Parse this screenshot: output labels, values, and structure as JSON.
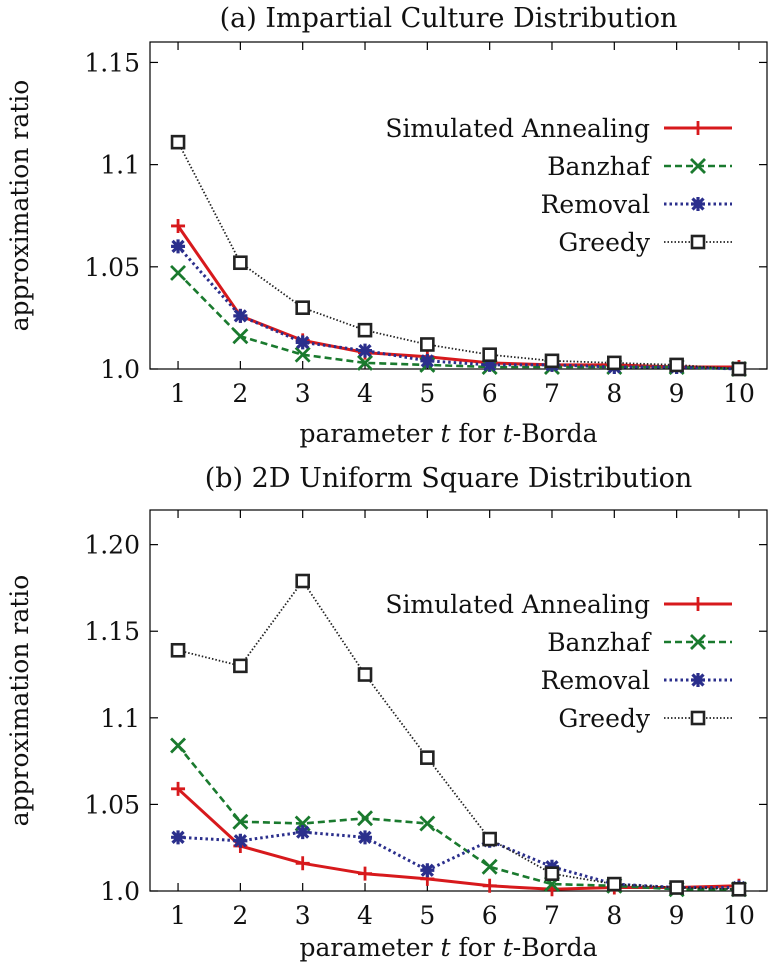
{
  "chart_data": [
    {
      "type": "line",
      "title": "(a) Impartial Culture Distribution",
      "xlabel": "parameter t for t-Borda",
      "xlabel_parts": [
        "parameter ",
        "t",
        " for ",
        "t",
        "-Borda"
      ],
      "ylabel": "approximation ratio",
      "x": [
        1,
        2,
        3,
        4,
        5,
        6,
        7,
        8,
        9,
        10
      ],
      "xticks": [
        "1",
        "2",
        "3",
        "4",
        "5",
        "6",
        "7",
        "8",
        "9",
        "10"
      ],
      "xlim": [
        0.55,
        10.45
      ],
      "ylim": [
        1.0,
        1.16
      ],
      "yticks": [
        1.0,
        1.05,
        1.1,
        1.15
      ],
      "ytick_labels": [
        "1.0",
        "1.05",
        "1.1",
        "1.15"
      ],
      "legend_position": "top-right",
      "series": [
        {
          "name": "Simulated Annealing",
          "color": "#d7191c",
          "style": "solid",
          "marker": "plus",
          "values": [
            1.07,
            1.026,
            1.014,
            1.008,
            1.006,
            1.003,
            1.002,
            1.002,
            1.001,
            1.001
          ]
        },
        {
          "name": "Banzhaf",
          "color": "#1a7a2e",
          "style": "dashed",
          "marker": "x",
          "values": [
            1.047,
            1.016,
            1.007,
            1.003,
            1.002,
            1.001,
            1.001,
            1.001,
            1.001,
            1.0
          ]
        },
        {
          "name": "Removal",
          "color": "#2b2f8c",
          "style": "dotted",
          "marker": "star",
          "values": [
            1.06,
            1.026,
            1.013,
            1.009,
            1.004,
            1.002,
            1.002,
            1.001,
            1.001,
            1.0
          ]
        },
        {
          "name": "Greedy",
          "color": "#222222",
          "style": "finedot",
          "marker": "square",
          "values": [
            1.111,
            1.052,
            1.03,
            1.019,
            1.012,
            1.007,
            1.004,
            1.003,
            1.002,
            1.0
          ]
        }
      ]
    },
    {
      "type": "line",
      "title": "(b) 2D Uniform Square Distribution",
      "xlabel": "parameter t for t-Borda",
      "xlabel_parts": [
        "parameter ",
        "t",
        " for ",
        "t",
        "-Borda"
      ],
      "ylabel": "approximation ratio",
      "x": [
        1,
        2,
        3,
        4,
        5,
        6,
        7,
        8,
        9,
        10
      ],
      "xticks": [
        "1",
        "2",
        "3",
        "4",
        "5",
        "6",
        "7",
        "8",
        "9",
        "10"
      ],
      "xlim": [
        0.55,
        10.45
      ],
      "ylim": [
        1.0,
        1.22
      ],
      "yticks": [
        1.0,
        1.05,
        1.1,
        1.15,
        1.2
      ],
      "ytick_labels": [
        "1.0",
        "1.05",
        "1.1",
        "1.15",
        "1.20"
      ],
      "legend_position": "top-right",
      "series": [
        {
          "name": "Simulated Annealing",
          "color": "#d7191c",
          "style": "solid",
          "marker": "plus",
          "values": [
            1.059,
            1.026,
            1.016,
            1.01,
            1.007,
            1.003,
            1.001,
            1.002,
            1.002,
            1.003
          ]
        },
        {
          "name": "Banzhaf",
          "color": "#1a7a2e",
          "style": "dashed",
          "marker": "x",
          "values": [
            1.084,
            1.04,
            1.039,
            1.042,
            1.039,
            1.014,
            1.004,
            1.003,
            1.001,
            1.001
          ]
        },
        {
          "name": "Removal",
          "color": "#2b2f8c",
          "style": "dotted",
          "marker": "star",
          "values": [
            1.031,
            1.029,
            1.034,
            1.031,
            1.012,
            1.029,
            1.014,
            1.004,
            1.002,
            1.002
          ]
        },
        {
          "name": "Greedy",
          "color": "#222222",
          "style": "finedot",
          "marker": "square",
          "values": [
            1.139,
            1.13,
            1.179,
            1.125,
            1.077,
            1.03,
            1.01,
            1.004,
            1.002,
            1.001
          ]
        }
      ]
    }
  ]
}
